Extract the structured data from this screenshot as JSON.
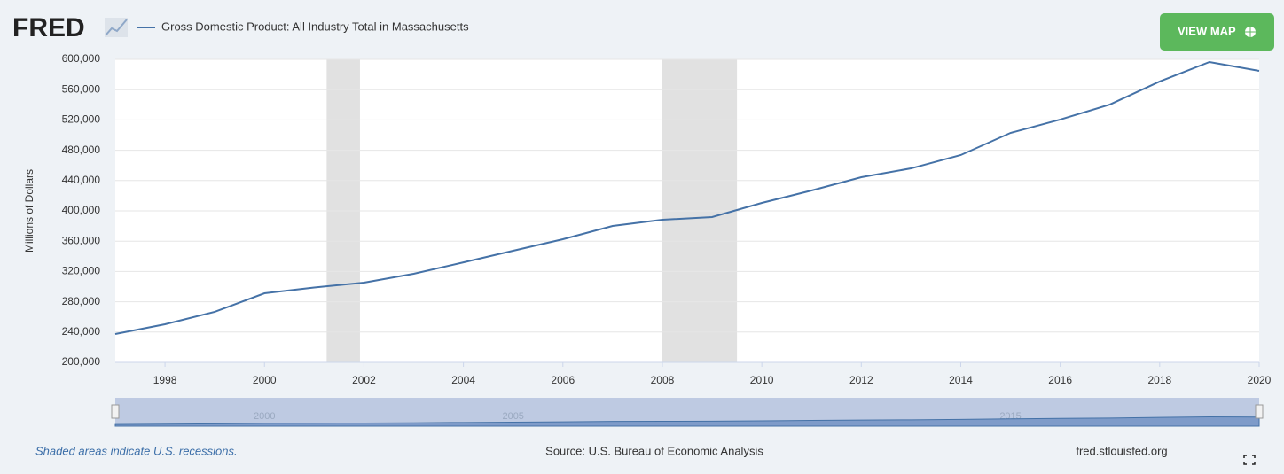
{
  "logo": "FRED",
  "button": "VIEW MAP",
  "chart_data": {
    "type": "line",
    "x": [
      1997,
      1998,
      1999,
      2000,
      2001,
      2002,
      2003,
      2004,
      2005,
      2006,
      2007,
      2008,
      2009,
      2010,
      2011,
      2012,
      2013,
      2014,
      2015,
      2016,
      2017,
      2018,
      2019,
      2020
    ],
    "series": [
      {
        "name": "Gross Domestic Product: All Industry Total in Massachusetts",
        "color": "#4572a7",
        "values": [
          237400,
          250300,
          266700,
          291200,
          298800,
          305300,
          317000,
          332000,
          347400,
          362600,
          380100,
          388300,
          391800,
          410500,
          426900,
          444400,
          456100,
          473700,
          502900,
          520500,
          540400,
          570800,
          596500,
          584800
        ]
      }
    ],
    "y_label": "Millions of Dollars",
    "xlim": [
      1997,
      2020
    ],
    "xticks": [
      1998,
      2000,
      2002,
      2004,
      2006,
      2008,
      2010,
      2012,
      2014,
      2016,
      2018,
      2020
    ],
    "ylim": [
      200000,
      600000
    ],
    "yticks": [
      {
        "value": 200000,
        "label": "200,000"
      },
      {
        "value": 240000,
        "label": "240,000"
      },
      {
        "value": 280000,
        "label": "280,000"
      },
      {
        "value": 320000,
        "label": "320,000"
      },
      {
        "value": 360000,
        "label": "360,000"
      },
      {
        "value": 400000,
        "label": "400,000"
      },
      {
        "value": 440000,
        "label": "440,000"
      },
      {
        "value": 480000,
        "label": "480,000"
      },
      {
        "value": 520000,
        "label": "520,000"
      },
      {
        "value": 560000,
        "label": "560,000"
      },
      {
        "value": 600000,
        "label": "600,000"
      }
    ],
    "grid": true,
    "recessions": [
      [
        2001.25,
        2001.92
      ],
      [
        2008.0,
        2009.5
      ]
    ],
    "recession_color": "#e1e1e1",
    "navigator_ticks": [
      2000,
      2005,
      2015
    ],
    "note": "Shaded areas indicate U.S. recessions.",
    "source": "Source: U.S. Bureau of Economic Analysis",
    "site": "fred.stlouisfed.org"
  }
}
